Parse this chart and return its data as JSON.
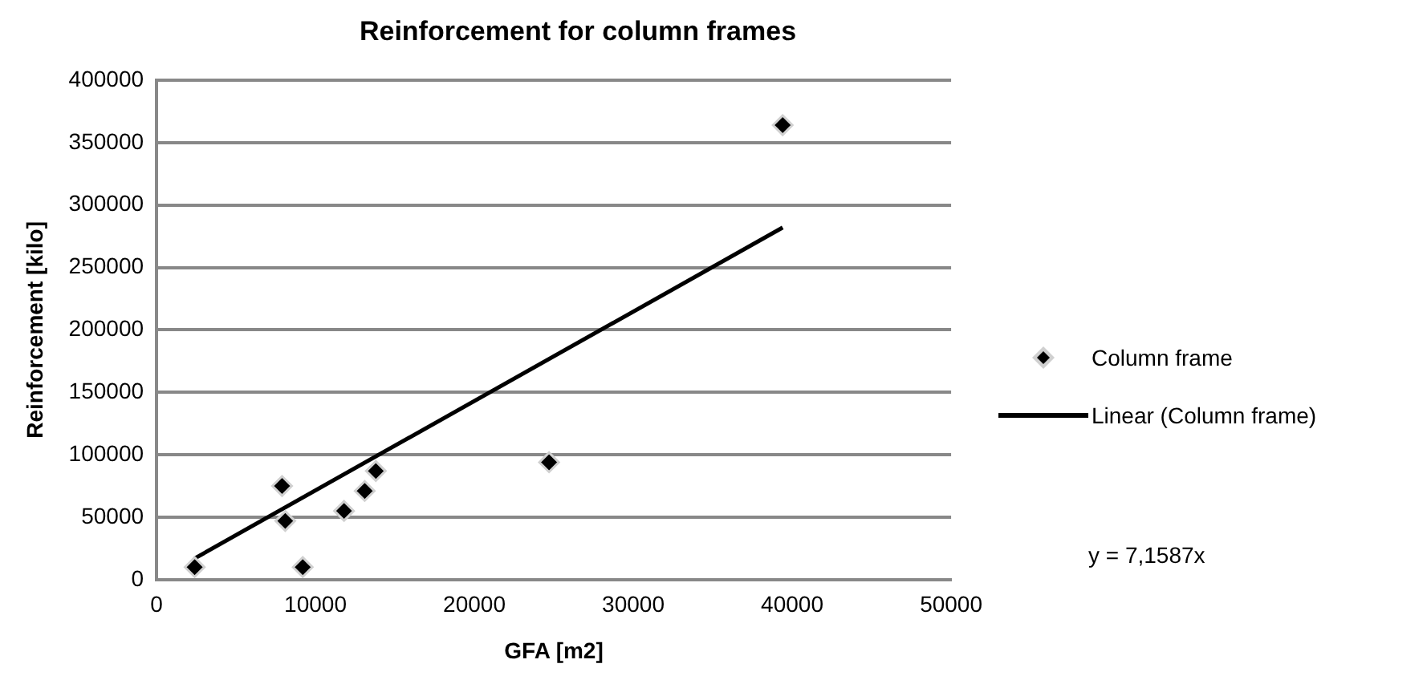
{
  "chart_data": {
    "type": "scatter",
    "title": "Reinforcement for column frames",
    "xlabel": "GFA [m2]",
    "ylabel": "Reinforcement [kilo]",
    "xlim": [
      0,
      50000
    ],
    "xticks": [
      0,
      10000,
      20000,
      30000,
      40000,
      50000
    ],
    "ylim": [
      0,
      400000
    ],
    "yticks": [
      0,
      50000,
      100000,
      150000,
      200000,
      250000,
      300000,
      350000,
      400000
    ],
    "grid": "y",
    "legend": "right",
    "marker": "diamond",
    "series": [
      {
        "name": "Column frame",
        "color": "#000000",
        "x": [
          2400,
          7900,
          8100,
          9200,
          11800,
          13100,
          13800,
          24700,
          39400
        ],
        "values": [
          10000,
          75000,
          47000,
          10000,
          55000,
          71000,
          87000,
          94000,
          364000
        ]
      },
      {
        "name": "Linear (Column frame)",
        "type": "line",
        "color": "#000000",
        "x": [
          2400,
          39400
        ],
        "values": [
          17000,
          282000
        ],
        "line_style": "solid",
        "marker": "none"
      }
    ],
    "annotations": [
      "y = 7,1587x"
    ]
  }
}
